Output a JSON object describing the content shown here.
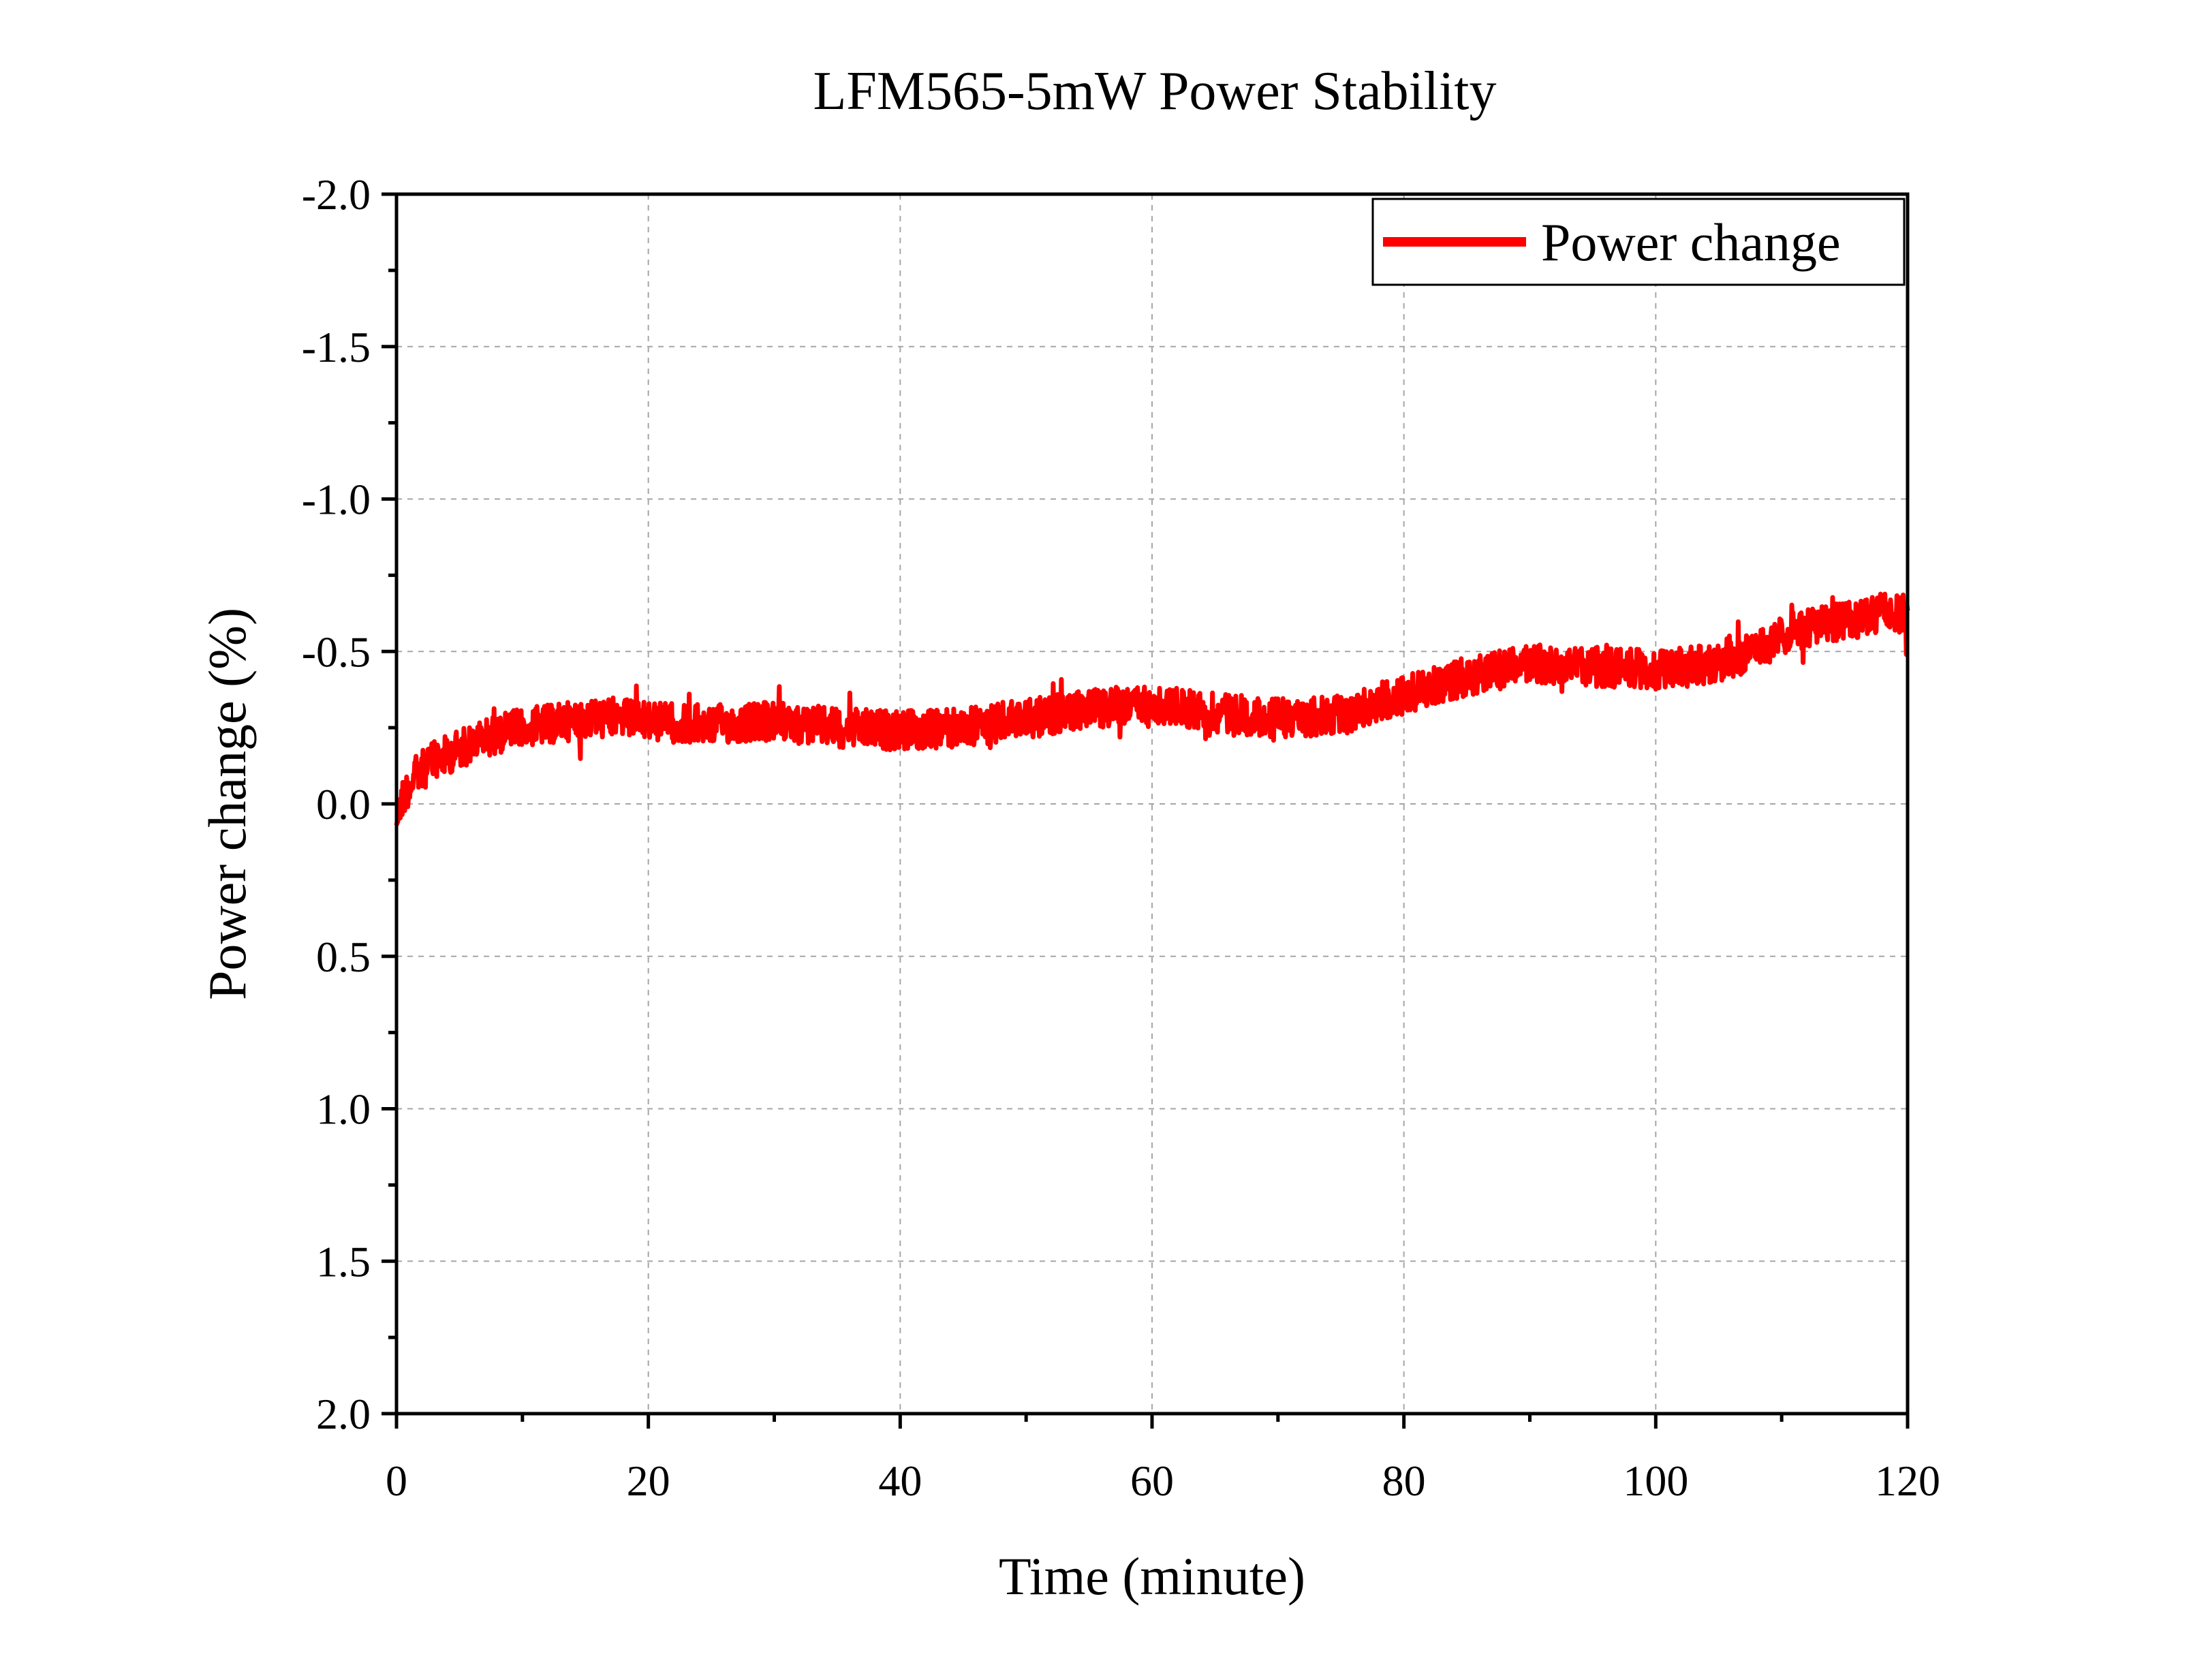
{
  "chart_data": {
    "type": "line",
    "title": "LFM565-5mW Power Stability",
    "xlabel": "Time (minute)",
    "ylabel": "Power change (%)",
    "xlim": [
      0,
      120
    ],
    "ylim": [
      2.0,
      -2.0
    ],
    "y_axis_inverted": true,
    "x_ticks": [
      0,
      20,
      40,
      60,
      80,
      100,
      120
    ],
    "x_tick_labels": [
      "0",
      "20",
      "40",
      "60",
      "80",
      "100",
      "120"
    ],
    "y_ticks": [
      -2.0,
      -1.5,
      -1.0,
      -0.5,
      0.0,
      0.5,
      1.0,
      1.5,
      2.0
    ],
    "y_tick_labels": [
      "-2.0",
      "-1.5",
      "-1.0",
      "-0.5",
      "0.0",
      "0.5",
      "1.0",
      "1.5",
      "2.0"
    ],
    "grid": true,
    "legend_position": "top-right",
    "series": [
      {
        "name": "Power change",
        "color": "#ff0000",
        "x": [
          0,
          0.5,
          1,
          1.5,
          2,
          3,
          4,
          5,
          6,
          8,
          10,
          12,
          15,
          18,
          20,
          25,
          30,
          35,
          40,
          45,
          50,
          55,
          60,
          65,
          70,
          75,
          80,
          85,
          90,
          95,
          100,
          105,
          108,
          110,
          112,
          115,
          118,
          120
        ],
        "values": [
          0.05,
          -0.02,
          -0.06,
          -0.09,
          -0.11,
          -0.14,
          -0.16,
          -0.18,
          -0.2,
          -0.23,
          -0.25,
          -0.26,
          -0.28,
          -0.28,
          -0.27,
          -0.26,
          -0.27,
          -0.25,
          -0.24,
          -0.25,
          -0.28,
          -0.31,
          -0.33,
          -0.3,
          -0.28,
          -0.29,
          -0.36,
          -0.42,
          -0.46,
          -0.45,
          -0.44,
          -0.46,
          -0.5,
          -0.55,
          -0.58,
          -0.6,
          -0.63,
          -0.62
        ]
      }
    ]
  }
}
